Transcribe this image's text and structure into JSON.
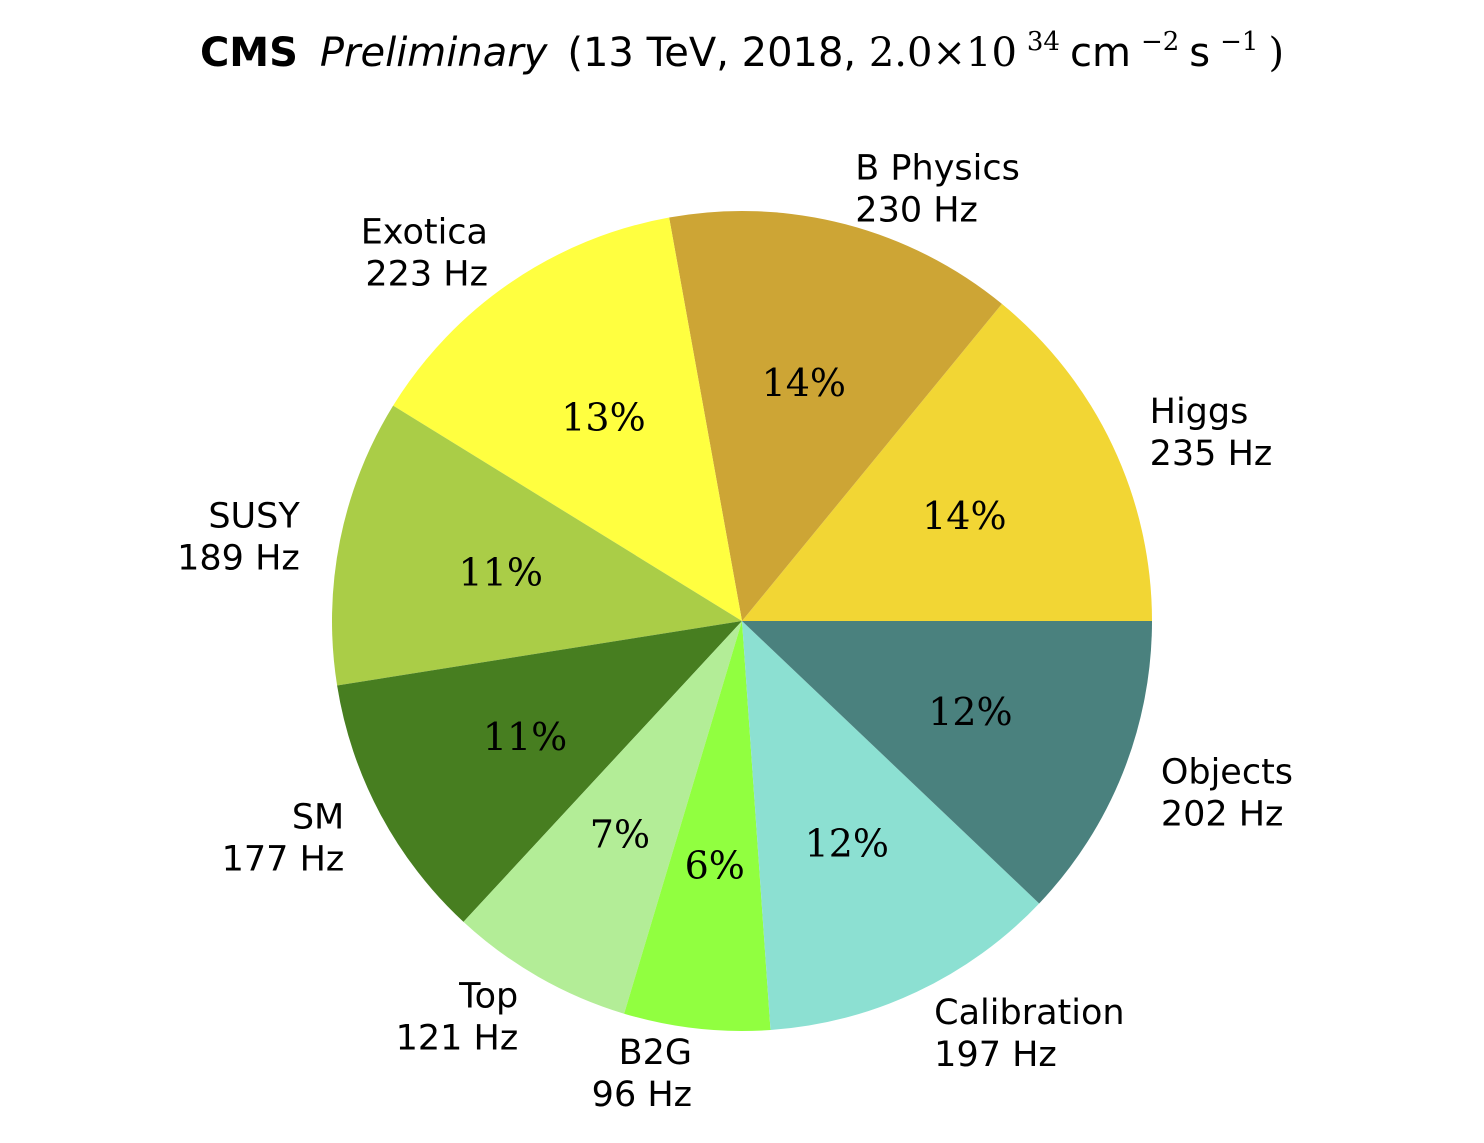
{
  "chart_data": {
    "type": "pie",
    "title": {
      "experiment": "CMS",
      "status": "Preliminary",
      "conditions_open": "(13 TeV, 2018, ",
      "lumi_mantissa": "2.0×10",
      "lumi_exp": "34",
      "unit_cm": " cm",
      "unit_cm_exp": "−2",
      "unit_s": "s",
      "unit_s_exp": "−1",
      "close": ")"
    },
    "unit": "Hz",
    "slices": [
      {
        "name": "Higgs",
        "rate_text": "235 Hz",
        "value": 235,
        "percent_text": "14%",
        "color": "#f2d634"
      },
      {
        "name": "B Physics",
        "rate_text": "230 Hz",
        "value": 230,
        "percent_text": "14%",
        "color": "#cda535"
      },
      {
        "name": "Exotica",
        "rate_text": "223 Hz",
        "value": 223,
        "percent_text": "13%",
        "color": "#ffff40"
      },
      {
        "name": "SUSY",
        "rate_text": "189 Hz",
        "value": 189,
        "percent_text": "11%",
        "color": "#aacd47"
      },
      {
        "name": "SM",
        "rate_text": "177 Hz",
        "value": 177,
        "percent_text": "11%",
        "color": "#477e20"
      },
      {
        "name": "Top",
        "rate_text": "121 Hz",
        "value": 121,
        "percent_text": "7%",
        "color": "#b3ed97"
      },
      {
        "name": "B2G",
        "rate_text": "96 Hz",
        "value": 96,
        "percent_text": "6%",
        "color": "#91ff40"
      },
      {
        "name": "Calibration",
        "rate_text": "197 Hz",
        "value": 197,
        "percent_text": "12%",
        "color": "#8ce0d2"
      },
      {
        "name": "Objects",
        "rate_text": "202 Hz",
        "value": 202,
        "percent_text": "12%",
        "color": "#4a817e"
      }
    ],
    "start_angle_deg": 0,
    "direction": "counterclockwise",
    "legend": "none"
  }
}
